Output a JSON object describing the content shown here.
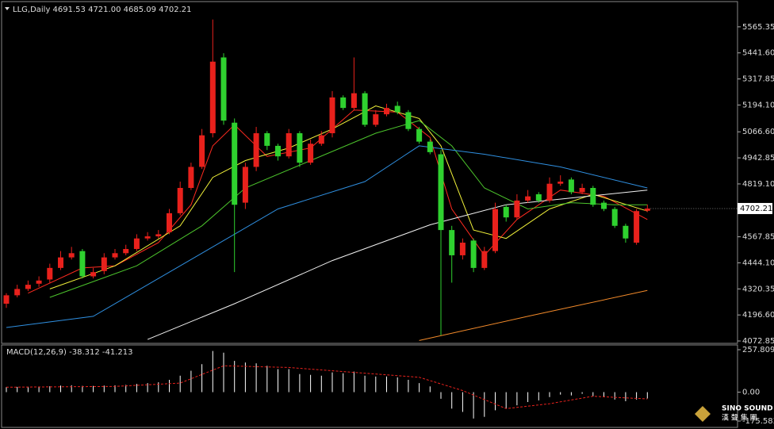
{
  "chart_data": [
    {
      "type": "candlestick",
      "header": "LLG,Daily  4691.53 4721.00 4685.09 4702.21",
      "up_color": "#e8211c",
      "down_color": "#2fd12f",
      "open": [
        4250,
        4290,
        4320,
        4345,
        4365,
        4420,
        4470,
        4500,
        4380,
        4405,
        4470,
        4490,
        4510,
        4560,
        4570,
        4590,
        4680,
        4800,
        4900,
        5060,
        5420,
        5110,
        4730,
        4900,
        5060,
        5000,
        4950,
        5060,
        4920,
        5010,
        5060,
        5230,
        5180,
        5250,
        5100,
        5150,
        5190,
        5160,
        5080,
        5020,
        4960,
        4600,
        4480,
        4550,
        4420,
        4500,
        4710,
        4660,
        4740,
        4770,
        4740,
        4820,
        4840,
        4780,
        4800,
        4730,
        4700,
        4620,
        4540,
        4691.53
      ],
      "high": [
        4300,
        4340,
        4360,
        4380,
        4440,
        4500,
        4520,
        4510,
        4420,
        4490,
        4510,
        4530,
        4580,
        4590,
        4600,
        4700,
        4830,
        4920,
        5080,
        5600,
        5440,
        5130,
        4920,
        5090,
        5070,
        5010,
        5080,
        5070,
        5030,
        5070,
        5260,
        5240,
        5420,
        5260,
        5170,
        5200,
        5210,
        5170,
        5090,
        5030,
        4980,
        4620,
        4560,
        4560,
        4520,
        4730,
        4720,
        4770,
        4790,
        4780,
        4850,
        4860,
        4850,
        4820,
        4810,
        4740,
        4710,
        4630,
        4700,
        4721
      ],
      "low": [
        4230,
        4280,
        4310,
        4330,
        4350,
        4410,
        4460,
        4370,
        4370,
        4390,
        4460,
        4480,
        4500,
        4550,
        4560,
        4580,
        4670,
        4790,
        4890,
        5040,
        5100,
        4400,
        4700,
        4880,
        4980,
        4930,
        4940,
        4900,
        4910,
        5000,
        5040,
        5170,
        5170,
        5090,
        5090,
        5140,
        5150,
        5070,
        5010,
        4960,
        4100,
        4350,
        4460,
        4400,
        4410,
        4490,
        4640,
        4650,
        4730,
        4730,
        4730,
        4810,
        4770,
        4770,
        4710,
        4690,
        4610,
        4540,
        4530,
        4685.09
      ],
      "close": [
        4290,
        4320,
        4340,
        4360,
        4420,
        4470,
        4490,
        4380,
        4400,
        4470,
        4490,
        4510,
        4560,
        4570,
        4580,
        4680,
        4800,
        4900,
        5050,
        5400,
        5120,
        4720,
        4900,
        5060,
        5000,
        4950,
        5060,
        4920,
        5010,
        5050,
        5230,
        5180,
        5250,
        5100,
        5150,
        5180,
        5160,
        5080,
        5020,
        4970,
        4600,
        4480,
        4540,
        4420,
        4500,
        4700,
        4660,
        4740,
        4760,
        4740,
        4820,
        4830,
        4780,
        4800,
        4720,
        4700,
        4620,
        4560,
        4690,
        4702.21
      ],
      "lines": [
        {
          "color": "#ff2a1f",
          "x": [
            2,
            7,
            10,
            14,
            17,
            19,
            21,
            24,
            28,
            32,
            36,
            39,
            41,
            44,
            47,
            51,
            55,
            59
          ],
          "values": [
            4300,
            4420,
            4430,
            4540,
            4720,
            5000,
            5100,
            4950,
            4990,
            5170,
            5160,
            5040,
            4700,
            4480,
            4650,
            4790,
            4760,
            4650
          ]
        },
        {
          "color": "#f2f23a",
          "x": [
            4,
            10,
            16,
            19,
            22,
            26,
            30,
            34,
            38,
            40,
            43,
            46,
            50,
            54,
            59
          ],
          "values": [
            4320,
            4430,
            4620,
            4850,
            4930,
            4990,
            5080,
            5190,
            5130,
            5000,
            4600,
            4560,
            4700,
            4770,
            4690
          ]
        },
        {
          "color": "#4cc42c",
          "x": [
            4,
            12,
            18,
            22,
            28,
            34,
            38,
            41,
            44,
            48,
            52,
            56,
            59
          ],
          "values": [
            4280,
            4430,
            4620,
            4800,
            4930,
            5060,
            5120,
            5000,
            4800,
            4700,
            4730,
            4720,
            4720
          ]
        },
        {
          "color": "#2f8fe0",
          "x": [
            0,
            8,
            18,
            25,
            33,
            38,
            44,
            51,
            59
          ],
          "values": [
            4137,
            4190,
            4490,
            4700,
            4830,
            5000,
            4960,
            4900,
            4800
          ]
        },
        {
          "color": "#f2f2f2",
          "x": [
            13,
            21,
            30,
            39,
            46,
            59
          ],
          "values": [
            4080,
            4250,
            4455,
            4625,
            4720,
            4790
          ]
        },
        {
          "color": "#f28a2a",
          "x": [
            38,
            48,
            59
          ],
          "values": [
            4075,
            4190,
            4313
          ]
        }
      ],
      "ylim": [
        4061.6,
        5685.35
      ],
      "yticks": [
        5565.35,
        {
          "value": 5441.6,
          "label": "5441.60"
        },
        5317.85,
        {
          "value": 5194.1,
          "label": "5194.10"
        },
        {
          "value": 5066.6,
          "label": "5066.60"
        },
        4942.85,
        {
          "value": 4819.1,
          "label": "4819.10"
        },
        4567.85,
        {
          "value": 4444.1,
          "label": "4444.10"
        },
        4320.35,
        {
          "value": 4196.6,
          "label": "4196.60"
        },
        4072.85
      ]
    },
    {
      "type": "macd",
      "label": "MACD(12,26,9) -38.312 -41.213",
      "color": "#ffffff",
      "values": [
        30,
        32,
        33,
        34,
        36,
        40,
        42,
        38,
        38,
        40,
        42,
        44,
        50,
        55,
        60,
        75,
        100,
        130,
        170,
        250,
        240,
        190,
        180,
        175,
        160,
        140,
        140,
        110,
        105,
        100,
        120,
        115,
        125,
        100,
        95,
        95,
        90,
        75,
        55,
        35,
        -40,
        -100,
        -120,
        -160,
        -150,
        -110,
        -100,
        -80,
        -60,
        -50,
        -30,
        -15,
        -20,
        -10,
        -25,
        -30,
        -45,
        -55,
        -45,
        -38.312
      ],
      "signal": {
        "color": "#e8211c",
        "x": [
          0,
          10,
          16,
          20,
          26,
          32,
          38,
          42,
          46,
          50,
          54,
          59
        ],
        "values": [
          30,
          35,
          55,
          160,
          150,
          120,
          90,
          10,
          -100,
          -70,
          -25,
          -41.213
        ]
      },
      "ylim": [
        -175.583,
        257.809
      ],
      "yticks": [
        257.809,
        {
          "value": 0,
          "label": "0.00"
        },
        -175.583
      ]
    }
  ],
  "logo": {
    "name": "SINO SOUND",
    "subtitle": "漢 聲 集 團"
  }
}
